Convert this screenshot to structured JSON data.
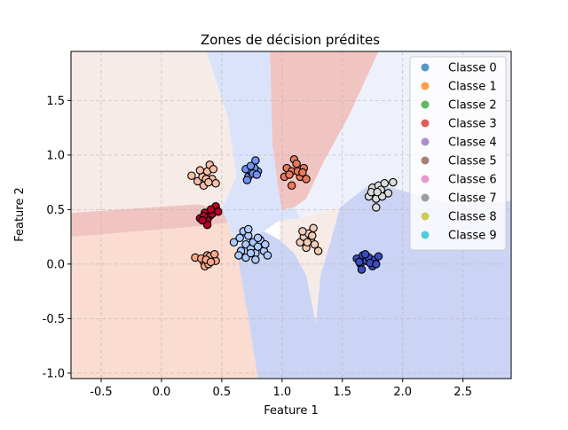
{
  "chart_data": {
    "type": "scatter",
    "title": "Zones de décision prédites",
    "xlabel": "Feature 1",
    "ylabel": "Feature 2",
    "xlim": [
      -0.75,
      2.9
    ],
    "ylim": [
      -1.05,
      1.95
    ],
    "xticks": [
      "-0.5",
      "0.0",
      "0.5",
      "1.0",
      "1.5",
      "2.0",
      "2.5"
    ],
    "xtick_values": [
      -0.5,
      0.0,
      0.5,
      1.0,
      1.5,
      2.0,
      2.5
    ],
    "yticks": [
      "-1.0",
      "-0.5",
      "0.0",
      "0.5",
      "1.0",
      "1.5"
    ],
    "ytick_values": [
      -1.0,
      -0.5,
      0.0,
      0.5,
      1.0,
      1.5
    ],
    "grid": true,
    "legend_position": "top-right",
    "legend": [
      {
        "label": "Classe 0",
        "color": "#1f77b4"
      },
      {
        "label": "Classe 1",
        "color": "#ff7f0e"
      },
      {
        "label": "Classe 2",
        "color": "#2ca02c"
      },
      {
        "label": "Classe 3",
        "color": "#d62728"
      },
      {
        "label": "Classe 4",
        "color": "#9467bd"
      },
      {
        "label": "Classe 5",
        "color": "#8c564b"
      },
      {
        "label": "Classe 6",
        "color": "#e377c2"
      },
      {
        "label": "Classe 7",
        "color": "#7f7f7f"
      },
      {
        "label": "Classe 8",
        "color": "#bcbd22"
      },
      {
        "label": "Classe 9",
        "color": "#17becf"
      }
    ],
    "regions": [
      {
        "color": "#fbdcd0",
        "points": [
          [
            -0.75,
            -1.05
          ],
          [
            0.8,
            -1.05
          ],
          [
            0.72,
            -0.5
          ],
          [
            0.62,
            0.15
          ],
          [
            0.55,
            0.38
          ],
          [
            0.35,
            0.35
          ],
          [
            -0.75,
            0.25
          ]
        ]
      },
      {
        "color": "#f0c4c1",
        "points": [
          [
            -0.75,
            0.25
          ],
          [
            0.35,
            0.35
          ],
          [
            0.55,
            0.38
          ],
          [
            0.5,
            0.5
          ],
          [
            0.3,
            0.55
          ],
          [
            -0.75,
            0.47
          ]
        ]
      },
      {
        "color": "#f7ebe7",
        "points": [
          [
            -0.75,
            0.47
          ],
          [
            0.3,
            0.55
          ],
          [
            0.5,
            0.5
          ],
          [
            0.62,
            0.8
          ],
          [
            0.55,
            1.35
          ],
          [
            0.37,
            1.95
          ],
          [
            -0.75,
            1.95
          ]
        ]
      },
      {
        "color": "#dbe3fb",
        "points": [
          [
            0.37,
            1.95
          ],
          [
            0.9,
            1.95
          ],
          [
            0.92,
            1.1
          ],
          [
            0.98,
            0.6
          ],
          [
            1.0,
            0.5
          ],
          [
            1.1,
            0.52
          ],
          [
            1.15,
            0.42
          ],
          [
            0.98,
            0.4
          ],
          [
            0.85,
            0.3
          ],
          [
            0.62,
            0.15
          ],
          [
            0.55,
            0.38
          ],
          [
            0.5,
            0.5
          ],
          [
            0.62,
            0.8
          ],
          [
            0.55,
            1.35
          ]
        ]
      },
      {
        "color": "#eef1fb",
        "points": [
          [
            1.15,
            0.42
          ],
          [
            1.48,
            0.52
          ],
          [
            1.75,
            0.75
          ],
          [
            1.92,
            1.0
          ],
          [
            2.9,
            1.15
          ],
          [
            2.9,
            1.95
          ],
          [
            1.8,
            1.95
          ],
          [
            1.55,
            1.35
          ],
          [
            1.35,
            0.95
          ],
          [
            1.2,
            0.6
          ],
          [
            1.1,
            0.52
          ]
        ]
      },
      {
        "color": "#f0c4c1",
        "points": [
          [
            0.9,
            1.95
          ],
          [
            1.8,
            1.95
          ],
          [
            1.55,
            1.35
          ],
          [
            1.35,
            0.95
          ],
          [
            1.2,
            0.6
          ],
          [
            1.1,
            0.52
          ],
          [
            1.0,
            0.5
          ],
          [
            0.98,
            0.6
          ],
          [
            0.92,
            1.1
          ]
        ]
      },
      {
        "color": "#f7ebe7",
        "points": [
          [
            0.98,
            0.4
          ],
          [
            1.15,
            0.42
          ],
          [
            1.48,
            0.52
          ],
          [
            1.4,
            0.2
          ],
          [
            1.32,
            -0.1
          ],
          [
            1.28,
            -0.55
          ],
          [
            1.2,
            -0.1
          ],
          [
            1.1,
            0.1
          ],
          [
            0.98,
            0.22
          ]
        ]
      },
      {
        "color": "#ccd4f5",
        "points": [
          [
            0.8,
            -1.05
          ],
          [
            2.9,
            -1.05
          ],
          [
            2.9,
            0.58
          ],
          [
            2.4,
            0.55
          ],
          [
            1.75,
            0.75
          ],
          [
            1.48,
            0.52
          ],
          [
            1.4,
            0.2
          ],
          [
            1.32,
            -0.1
          ],
          [
            1.28,
            -0.55
          ],
          [
            1.2,
            -0.1
          ],
          [
            1.1,
            0.1
          ],
          [
            0.98,
            0.22
          ],
          [
            0.85,
            0.3
          ],
          [
            0.62,
            0.15
          ],
          [
            0.72,
            -0.5
          ]
        ]
      },
      {
        "color": "#eef1fb",
        "points": [
          [
            1.75,
            0.75
          ],
          [
            2.4,
            0.55
          ],
          [
            2.9,
            0.58
          ],
          [
            2.9,
            1.15
          ],
          [
            1.92,
            1.0
          ]
        ]
      }
    ],
    "clusters": [
      {
        "color": "#f7a889",
        "points": [
          [
            0.28,
            0.06
          ],
          [
            0.35,
            0.02
          ],
          [
            0.38,
            0.08
          ],
          [
            0.42,
            0.05
          ],
          [
            0.45,
            0.03
          ],
          [
            0.36,
            -0.02
          ],
          [
            0.4,
            0.07
          ],
          [
            0.33,
            0.05
          ],
          [
            0.44,
            0.09
          ],
          [
            0.39,
            0.0
          ],
          [
            0.37,
            0.04
          ],
          [
            0.41,
            0.02
          ]
        ]
      },
      {
        "color": "#b40426",
        "points": [
          [
            0.32,
            0.42
          ],
          [
            0.36,
            0.47
          ],
          [
            0.4,
            0.44
          ],
          [
            0.44,
            0.5
          ],
          [
            0.45,
            0.53
          ],
          [
            0.38,
            0.4
          ],
          [
            0.42,
            0.46
          ],
          [
            0.35,
            0.44
          ],
          [
            0.38,
            0.36
          ],
          [
            0.47,
            0.48
          ],
          [
            0.34,
            0.4
          ],
          [
            0.41,
            0.5
          ]
        ]
      },
      {
        "color": "#f6bfa6",
        "points": [
          [
            0.25,
            0.81
          ],
          [
            0.3,
            0.76
          ],
          [
            0.34,
            0.8
          ],
          [
            0.38,
            0.85
          ],
          [
            0.4,
            0.91
          ],
          [
            0.42,
            0.78
          ],
          [
            0.45,
            0.74
          ],
          [
            0.35,
            0.72
          ],
          [
            0.32,
            0.86
          ],
          [
            0.37,
            0.78
          ],
          [
            0.43,
            0.87
          ],
          [
            0.39,
            0.75
          ]
        ]
      },
      {
        "color": "#6f92f3",
        "points": [
          [
            0.7,
            0.87
          ],
          [
            0.72,
            0.8
          ],
          [
            0.75,
            0.84
          ],
          [
            0.78,
            0.95
          ],
          [
            0.8,
            0.85
          ],
          [
            0.77,
            0.88
          ],
          [
            0.74,
            0.9
          ],
          [
            0.71,
            0.77
          ],
          [
            0.76,
            0.83
          ],
          [
            0.79,
            0.82
          ]
        ]
      },
      {
        "color": "#e9785d",
        "points": [
          [
            1.02,
            0.8
          ],
          [
            1.04,
            0.88
          ],
          [
            1.08,
            0.85
          ],
          [
            1.1,
            0.96
          ],
          [
            1.12,
            0.92
          ],
          [
            1.15,
            0.8
          ],
          [
            1.18,
            0.88
          ],
          [
            1.2,
            0.78
          ],
          [
            1.08,
            0.72
          ],
          [
            1.13,
            0.85
          ],
          [
            1.06,
            0.82
          ],
          [
            1.17,
            0.84
          ]
        ]
      },
      {
        "color": "#dddcdc",
        "points": [
          [
            1.72,
            0.62
          ],
          [
            1.75,
            0.7
          ],
          [
            1.78,
            0.6
          ],
          [
            1.8,
            0.72
          ],
          [
            1.82,
            0.68
          ],
          [
            1.85,
            0.74
          ],
          [
            1.88,
            0.65
          ],
          [
            1.92,
            0.75
          ],
          [
            1.78,
            0.52
          ],
          [
            1.74,
            0.66
          ],
          [
            1.83,
            0.62
          ],
          [
            1.79,
            0.66
          ]
        ]
      },
      {
        "color": "#f2cbb7",
        "points": [
          [
            1.15,
            0.2
          ],
          [
            1.18,
            0.25
          ],
          [
            1.2,
            0.15
          ],
          [
            1.22,
            0.28
          ],
          [
            1.24,
            0.22
          ],
          [
            1.26,
            0.33
          ],
          [
            1.27,
            0.18
          ],
          [
            1.3,
            0.12
          ],
          [
            1.17,
            0.3
          ],
          [
            1.21,
            0.2
          ],
          [
            1.25,
            0.26
          ]
        ]
      },
      {
        "color": "#aec9fc",
        "points": [
          [
            0.6,
            0.2
          ],
          [
            0.65,
            0.24
          ],
          [
            0.68,
            0.3
          ],
          [
            0.7,
            0.18
          ],
          [
            0.72,
            0.26
          ],
          [
            0.74,
            0.14
          ],
          [
            0.76,
            0.2
          ],
          [
            0.78,
            0.1
          ],
          [
            0.8,
            0.16
          ],
          [
            0.82,
            0.22
          ],
          [
            0.85,
            0.12
          ],
          [
            0.88,
            0.08
          ],
          [
            0.66,
            0.12
          ],
          [
            0.7,
            0.06
          ],
          [
            0.74,
            0.1
          ],
          [
            0.78,
            0.04
          ],
          [
            0.64,
            0.08
          ],
          [
            0.8,
            0.24
          ],
          [
            0.72,
            0.32
          ],
          [
            0.86,
            0.18
          ]
        ]
      },
      {
        "color": "#3b4cc0",
        "points": [
          [
            1.62,
            0.05
          ],
          [
            1.65,
            0.0
          ],
          [
            1.67,
            0.08
          ],
          [
            1.7,
            0.03
          ],
          [
            1.72,
            0.06
          ],
          [
            1.75,
            -0.02
          ],
          [
            1.77,
            0.04
          ],
          [
            1.8,
            0.07
          ],
          [
            1.66,
            -0.05
          ],
          [
            1.73,
            0.01
          ],
          [
            1.69,
            0.09
          ],
          [
            1.78,
            0.0
          ],
          [
            1.64,
            0.02
          ]
        ]
      }
    ]
  }
}
